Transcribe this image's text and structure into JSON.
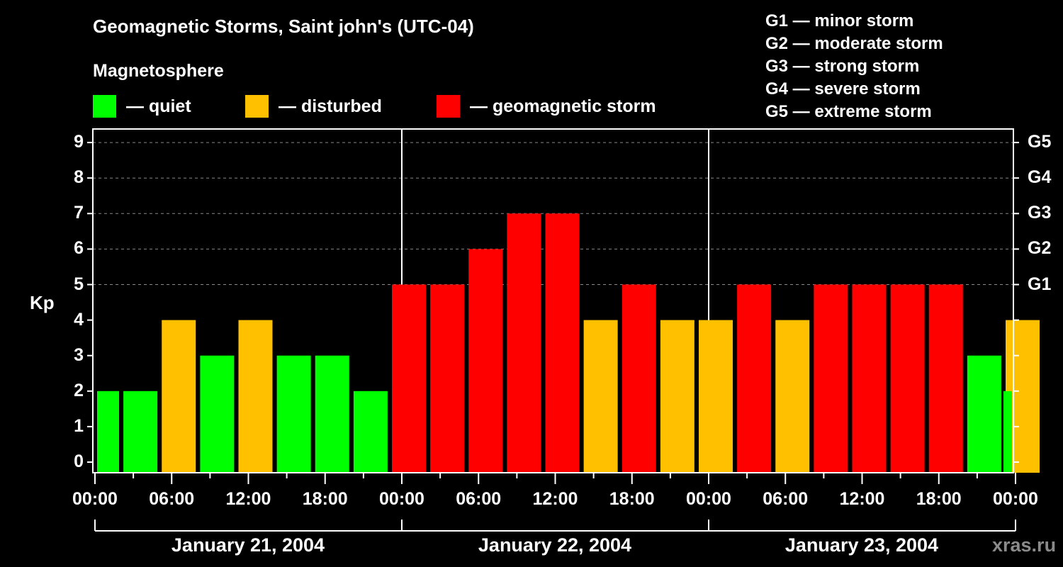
{
  "header": {
    "title": "Geomagnetic Storms, Saint john's (UTC-04)",
    "subtitle": "Magnetosphere"
  },
  "legend": [
    {
      "label": "— quiet",
      "color": "#00ff00"
    },
    {
      "label": "— disturbed",
      "color": "#ffc000"
    },
    {
      "label": "— geomagnetic storm",
      "color": "#ff0000"
    }
  ],
  "g_legend": [
    "G1 — minor storm",
    "G2 — moderate storm",
    "G3 — strong storm",
    "G4 — severe storm",
    "G5 — extreme storm"
  ],
  "watermark": "xras.ru",
  "chart_data": {
    "type": "bar",
    "title": "Geomagnetic Storms, Saint john's (UTC-04)",
    "subtitle": "Magnetosphere",
    "ylabel": "Kp",
    "xlabel": "",
    "ylim": [
      0,
      9
    ],
    "yticks": [
      "0",
      "1",
      "2",
      "3",
      "4",
      "5",
      "6",
      "7",
      "8",
      "9"
    ],
    "right_ticks": [
      {
        "value": 5,
        "label": "G1"
      },
      {
        "value": 6,
        "label": "G2"
      },
      {
        "value": 7,
        "label": "G3"
      },
      {
        "value": 8,
        "label": "G4"
      },
      {
        "value": 9,
        "label": "G5"
      }
    ],
    "xtick_labels": [
      "00:00",
      "06:00",
      "12:00",
      "18:00",
      "00:00",
      "06:00",
      "12:00",
      "18:00",
      "00:00",
      "06:00",
      "12:00",
      "18:00",
      "00:00"
    ],
    "date_labels": [
      "January 21, 2004",
      "January 22, 2004",
      "January 23, 2004"
    ],
    "grid": "dashed horizontal at 5-9",
    "colors": {
      "quiet": "#00ff00",
      "disturbed": "#ffc000",
      "storm": "#ff0000"
    },
    "categories": [
      "Jan21 00-03",
      "Jan21 03-06",
      "Jan21 06-09",
      "Jan21 09-12",
      "Jan21 12-15",
      "Jan21 15-18",
      "Jan21 18-21",
      "Jan21 21-24",
      "Jan22 00-03",
      "Jan22 03-06",
      "Jan22 06-09",
      "Jan22 09-12",
      "Jan22 12-15",
      "Jan22 15-18",
      "Jan22 18-21",
      "Jan22 21-24",
      "Jan23 00-03",
      "Jan23 03-06",
      "Jan23 06-09",
      "Jan23 09-12",
      "Jan23 12-15",
      "Jan23 15-18",
      "Jan23 18-21",
      "Jan23 21-24"
    ],
    "values": [
      2,
      4,
      3,
      4,
      3,
      3,
      2,
      5,
      5,
      6,
      7,
      7,
      4,
      5,
      4,
      4,
      5,
      4,
      5,
      5,
      5,
      5,
      3,
      4
    ],
    "partial_leading": 2,
    "partial_trailing": 2
  }
}
